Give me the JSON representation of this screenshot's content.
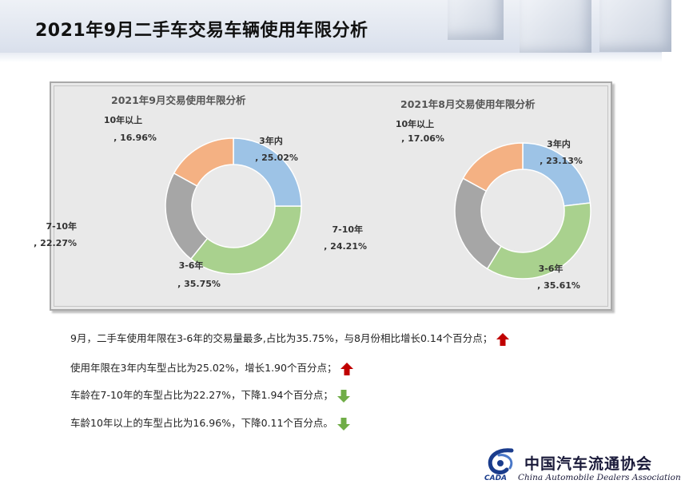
{
  "page": {
    "title": "2021年9月二手车交易车辆使用年限分析"
  },
  "colors": {
    "3年内": "#9dc3e6",
    "3-6年": "#a9d18e",
    "7-10年": "#a6a6a6",
    "10年以上": "#f4b183",
    "up_arrow": "#c00000",
    "down_arrow": "#70ad47"
  },
  "chart_data": [
    {
      "type": "pie",
      "variant": "donut",
      "title": "2021年9月交易使用年限分析",
      "categories": [
        "3年内",
        "3-6年",
        "7-10年",
        "10年以上"
      ],
      "values": [
        25.02,
        35.75,
        22.27,
        16.96
      ],
      "value_labels": [
        ", 25.02%",
        ", 35.75%",
        ", 22.27%",
        ", 16.96%"
      ],
      "legend": "none"
    },
    {
      "type": "pie",
      "variant": "donut",
      "title": "2021年8月交易使用年限分析",
      "categories": [
        "3年内",
        "3-6年",
        "7-10年",
        "10年以上"
      ],
      "values": [
        23.13,
        35.61,
        24.21,
        17.06
      ],
      "value_labels": [
        ", 23.13%",
        ", 35.61%",
        ", 24.21%",
        ", 17.06%"
      ],
      "legend": "none"
    }
  ],
  "notes": [
    {
      "text": "9月，二手车使用年限在3-6年的交易量最多,占比为35.75%，与8月份相比增长0.14个百分点；",
      "arrow": "up"
    },
    {
      "text": "使用年限在3年内车型占比为25.02%，增长1.90个百分点；",
      "arrow": "up"
    },
    {
      "text": "车龄在7-10年的车型占比为22.27%，下降1.94个百分点；",
      "arrow": "down"
    },
    {
      "text": "车龄10年以上的车型占比为16.96%，下降0.11个百分点。",
      "arrow": "down"
    }
  ],
  "logo": {
    "cn": "中国汽车流通协会",
    "en": "China Automobile Dealers Association",
    "abbr": "CADA"
  }
}
